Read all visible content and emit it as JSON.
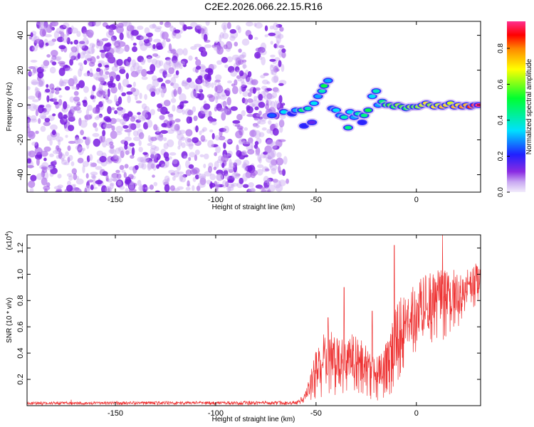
{
  "chart_data": [
    {
      "type": "heatmap",
      "title": "C2E2.2026.066.22.15.R16",
      "xlabel": "Height of straight line (km)",
      "ylabel": "Frequency (Hz)",
      "xlim": [
        -194,
        32
      ],
      "ylim": [
        -50,
        48
      ],
      "xticks": [
        -150,
        -100,
        -50,
        0
      ],
      "yticks": [
        -40,
        -20,
        0,
        20,
        40
      ],
      "colorbar": {
        "label": "Normalized spectral amplitude",
        "range": [
          0,
          0.95
        ],
        "ticks": [
          "0.0",
          "0.2",
          "0.4",
          "0.6",
          "0.8"
        ],
        "tick_values": [
          0,
          0.2,
          0.4,
          0.6,
          0.8
        ]
      },
      "noise_region_km": [
        -194,
        -66
      ],
      "signal_track": [
        {
          "x": -72,
          "y": -6,
          "v": 0.25
        },
        {
          "x": -66,
          "y": -4,
          "v": 0.35
        },
        {
          "x": -62,
          "y": -5,
          "v": 0.2
        },
        {
          "x": -60,
          "y": -3,
          "v": 0.3
        },
        {
          "x": -57,
          "y": -3,
          "v": 0.45
        },
        {
          "x": -56,
          "y": -12,
          "v": 0.2
        },
        {
          "x": -54,
          "y": -2,
          "v": 0.4
        },
        {
          "x": -52,
          "y": -10,
          "v": 0.15
        },
        {
          "x": -51,
          "y": 1,
          "v": 0.35
        },
        {
          "x": -49,
          "y": 5,
          "v": 0.3
        },
        {
          "x": -47,
          "y": 8,
          "v": 0.4
        },
        {
          "x": -46,
          "y": 11,
          "v": 0.5
        },
        {
          "x": -44,
          "y": 14,
          "v": 0.3
        },
        {
          "x": -42,
          "y": -2,
          "v": 0.25
        },
        {
          "x": -40,
          "y": -3,
          "v": 0.35
        },
        {
          "x": -38,
          "y": -6,
          "v": 0.3
        },
        {
          "x": -36,
          "y": -7,
          "v": 0.4
        },
        {
          "x": -34,
          "y": -13,
          "v": 0.45
        },
        {
          "x": -33,
          "y": -4,
          "v": 0.35
        },
        {
          "x": -31,
          "y": -7,
          "v": 0.3
        },
        {
          "x": -29,
          "y": -5,
          "v": 0.4
        },
        {
          "x": -27,
          "y": -10,
          "v": 0.2
        },
        {
          "x": -26,
          "y": -6,
          "v": 0.45
        },
        {
          "x": -24,
          "y": -3,
          "v": 0.5
        },
        {
          "x": -22,
          "y": 5,
          "v": 0.35
        },
        {
          "x": -20,
          "y": 8,
          "v": 0.4
        },
        {
          "x": -19,
          "y": 0,
          "v": 0.3
        },
        {
          "x": -17,
          "y": 2,
          "v": 0.45
        },
        {
          "x": -15,
          "y": 0,
          "v": 0.5
        },
        {
          "x": -13,
          "y": 0,
          "v": 0.55
        },
        {
          "x": -11,
          "y": -1,
          "v": 0.5
        },
        {
          "x": -9,
          "y": 0,
          "v": 0.6
        },
        {
          "x": -7,
          "y": -1,
          "v": 0.55
        },
        {
          "x": -5,
          "y": -2,
          "v": 0.5
        },
        {
          "x": -3,
          "y": -1,
          "v": 0.6
        },
        {
          "x": -1,
          "y": -1,
          "v": 0.55
        },
        {
          "x": 1,
          "y": -1,
          "v": 0.6
        },
        {
          "x": 3,
          "y": 0,
          "v": 0.65
        },
        {
          "x": 5,
          "y": 1,
          "v": 0.7
        },
        {
          "x": 7,
          "y": 0,
          "v": 0.6
        },
        {
          "x": 9,
          "y": -1,
          "v": 0.7
        },
        {
          "x": 11,
          "y": 0,
          "v": 0.65
        },
        {
          "x": 13,
          "y": -1,
          "v": 0.75
        },
        {
          "x": 15,
          "y": 0,
          "v": 0.7
        },
        {
          "x": 17,
          "y": 1,
          "v": 0.65
        },
        {
          "x": 19,
          "y": -1,
          "v": 0.75
        },
        {
          "x": 21,
          "y": 0,
          "v": 0.7
        },
        {
          "x": 23,
          "y": -1,
          "v": 0.8
        },
        {
          "x": 25,
          "y": 0,
          "v": 0.75
        },
        {
          "x": 27,
          "y": -1,
          "v": 0.85
        },
        {
          "x": 29,
          "y": 0,
          "v": 0.9
        },
        {
          "x": 31,
          "y": 0,
          "v": 0.95
        }
      ]
    },
    {
      "type": "line",
      "xlabel": "Height of straight line (km)",
      "ylabel": "SNR (10 * v/v)",
      "ylabel_multiplier": "(x10",
      "ylabel_multiplier_exp": "4",
      "ylabel_multiplier_close": ")",
      "xlim": [
        -194,
        32
      ],
      "ylim": [
        0,
        1.3
      ],
      "xticks": [
        -150,
        -100,
        -50,
        0
      ],
      "yticks": [
        0.2,
        0.4,
        0.6,
        0.8,
        1.0,
        1.2
      ],
      "ytick_labels": [
        "0.2",
        "0.4",
        "0.6",
        "0.8",
        "1.0",
        "1.2"
      ],
      "series": [
        {
          "name": "SNR",
          "color": "#ee3333",
          "envelope": [
            {
              "x": -194,
              "lo": 0.005,
              "hi": 0.03
            },
            {
              "x": -60,
              "lo": 0.005,
              "hi": 0.035
            },
            {
              "x": -56,
              "lo": 0.01,
              "hi": 0.08
            },
            {
              "x": -54,
              "lo": 0.02,
              "hi": 0.18
            },
            {
              "x": -52,
              "lo": 0.03,
              "hi": 0.3
            },
            {
              "x": -50,
              "lo": 0.04,
              "hi": 0.42
            },
            {
              "x": -47,
              "lo": 0.06,
              "hi": 0.55
            },
            {
              "x": -44,
              "lo": 0.08,
              "hi": 0.62
            },
            {
              "x": -40,
              "lo": 0.08,
              "hi": 0.55
            },
            {
              "x": -36,
              "lo": 0.08,
              "hi": 0.5
            },
            {
              "x": -32,
              "lo": 0.07,
              "hi": 0.55
            },
            {
              "x": -28,
              "lo": 0.06,
              "hi": 0.52
            },
            {
              "x": -24,
              "lo": 0.05,
              "hi": 0.45
            },
            {
              "x": -20,
              "lo": 0.04,
              "hi": 0.38
            },
            {
              "x": -17,
              "lo": 0.03,
              "hi": 0.4
            },
            {
              "x": -14,
              "lo": 0.05,
              "hi": 0.55
            },
            {
              "x": -11,
              "lo": 0.1,
              "hi": 0.75
            },
            {
              "x": -8,
              "lo": 0.2,
              "hi": 0.85
            },
            {
              "x": -5,
              "lo": 0.3,
              "hi": 0.85
            },
            {
              "x": -2,
              "lo": 0.32,
              "hi": 0.9
            },
            {
              "x": 1,
              "lo": 0.38,
              "hi": 0.95
            },
            {
              "x": 4,
              "lo": 0.42,
              "hi": 1.0
            },
            {
              "x": 7,
              "lo": 0.45,
              "hi": 1.02
            },
            {
              "x": 10,
              "lo": 0.48,
              "hi": 1.05
            },
            {
              "x": 14,
              "lo": 0.5,
              "hi": 1.05
            },
            {
              "x": 18,
              "lo": 0.55,
              "hi": 1.05
            },
            {
              "x": 22,
              "lo": 0.6,
              "hi": 1.05
            },
            {
              "x": 26,
              "lo": 0.68,
              "hi": 1.05
            },
            {
              "x": 29,
              "lo": 0.75,
              "hi": 1.08
            },
            {
              "x": 32,
              "lo": 0.8,
              "hi": 1.1
            }
          ],
          "spikes": [
            {
              "x": -172,
              "y": 0.045
            },
            {
              "x": -44,
              "y": 0.67
            },
            {
              "x": -36,
              "y": 0.9
            },
            {
              "x": -22,
              "y": 0.72
            },
            {
              "x": -11,
              "y": 1.22
            },
            {
              "x": 13,
              "y": 1.3
            },
            {
              "x": 27,
              "y": 1.02
            }
          ]
        }
      ]
    }
  ]
}
